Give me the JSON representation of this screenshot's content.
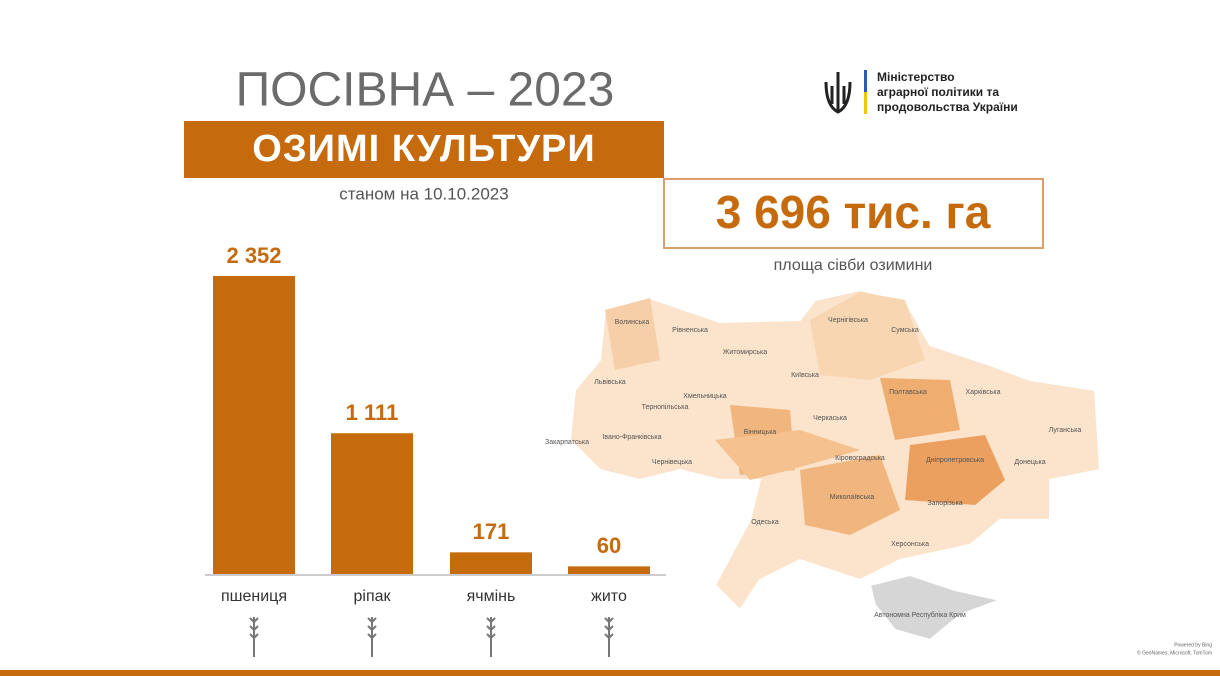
{
  "header": {
    "title": "ПОСІВНА – 2023",
    "banner": "ОЗИМІ КУЛЬТУРИ",
    "subtitle": "станом на 10.10.2023"
  },
  "logo": {
    "lines": [
      "Міністерство",
      "аграрної політики та",
      "продовольства України"
    ]
  },
  "total": {
    "value": "3 696 тис. га",
    "caption": "площа сівби озимини"
  },
  "chart_data": {
    "type": "bar",
    "categories": [
      "пшениця",
      "ріпак",
      "ячмінь",
      "жито"
    ],
    "values": [
      2352,
      1111,
      171,
      60
    ],
    "value_labels": [
      "2 352",
      "1 111",
      "171",
      "60"
    ],
    "color": "#c66a0e"
  },
  "map": {
    "labels": [
      "Волинська",
      "Рівненська",
      "Житомирська",
      "Чернігівська",
      "Сумська",
      "Київська",
      "Львівська",
      "Хмельницька",
      "Тернопільська",
      "Полтавська",
      "Харківська",
      "Луганська",
      "Закарпатська",
      "Івано-Франківська",
      "Вінницька",
      "Черкаська",
      "Кіровоградська",
      "Дніпропетровська",
      "Донецька",
      "Чернівецька",
      "Одеська",
      "Миколаївська",
      "Запорізька",
      "Херсонська",
      "Автономна Республіка Крим"
    ],
    "attribution": [
      "Powered by Bing",
      "© GeoNames, Microsoft, TomTom"
    ]
  }
}
